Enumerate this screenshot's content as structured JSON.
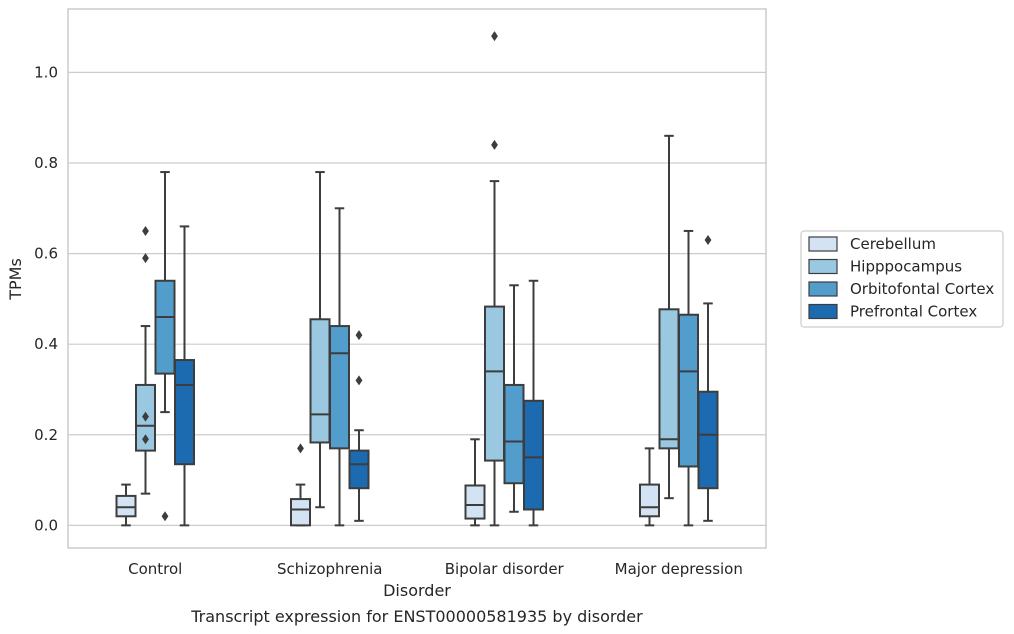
{
  "chart_data": {
    "type": "box",
    "caption": "Transcript expression for ENST00000581935 by disorder",
    "xlabel": "Disorder",
    "ylabel": "TPMs",
    "categories": [
      "Control",
      "Schizophrenia",
      "Bipolar disorder",
      "Major depression"
    ],
    "ylim": [
      -0.05,
      1.14
    ],
    "yticks": [
      "0.0",
      "0.2",
      "0.4",
      "0.6",
      "0.8",
      "1.0"
    ],
    "grid": true,
    "legend_position": "right",
    "series": [
      {
        "name": "Cerebellum",
        "color": "#d3e3f3",
        "boxes": [
          {
            "whislo": 0.0,
            "q1": 0.02,
            "med": 0.04,
            "q3": 0.065,
            "whishi": 0.09,
            "fliers": []
          },
          {
            "whislo": 0.0,
            "q1": 0.0,
            "med": 0.035,
            "q3": 0.058,
            "whishi": 0.09,
            "fliers": [
              0.17
            ]
          },
          {
            "whislo": 0.0,
            "q1": 0.015,
            "med": 0.045,
            "q3": 0.088,
            "whishi": 0.19,
            "fliers": []
          },
          {
            "whislo": 0.0,
            "q1": 0.02,
            "med": 0.04,
            "q3": 0.09,
            "whishi": 0.17,
            "fliers": []
          }
        ]
      },
      {
        "name": "Hipppocampus",
        "color": "#9ac8e0",
        "boxes": [
          {
            "whislo": 0.07,
            "q1": 0.165,
            "med": 0.22,
            "q3": 0.31,
            "whishi": 0.44,
            "fliers": [
              0.65,
              0.59,
              0.24,
              0.19
            ]
          },
          {
            "whislo": 0.04,
            "q1": 0.183,
            "med": 0.245,
            "q3": 0.455,
            "whishi": 0.78,
            "fliers": []
          },
          {
            "whislo": 0.0,
            "q1": 0.143,
            "med": 0.34,
            "q3": 0.483,
            "whishi": 0.76,
            "fliers": [
              1.08,
              0.84
            ]
          },
          {
            "whislo": 0.06,
            "q1": 0.17,
            "med": 0.19,
            "q3": 0.477,
            "whishi": 0.86,
            "fliers": []
          }
        ]
      },
      {
        "name": "Orbitofontal Cortex",
        "color": "#529dcc",
        "boxes": [
          {
            "whislo": 0.25,
            "q1": 0.335,
            "med": 0.46,
            "q3": 0.54,
            "whishi": 0.78,
            "fliers": [
              0.02
            ]
          },
          {
            "whislo": 0.0,
            "q1": 0.17,
            "med": 0.38,
            "q3": 0.44,
            "whishi": 0.7,
            "fliers": []
          },
          {
            "whislo": 0.03,
            "q1": 0.093,
            "med": 0.185,
            "q3": 0.31,
            "whishi": 0.53,
            "fliers": []
          },
          {
            "whislo": 0.0,
            "q1": 0.13,
            "med": 0.34,
            "q3": 0.465,
            "whishi": 0.65,
            "fliers": []
          }
        ]
      },
      {
        "name": "Prefrontal Cortex",
        "color": "#1c6aaf",
        "boxes": [
          {
            "whislo": 0.0,
            "q1": 0.135,
            "med": 0.31,
            "q3": 0.365,
            "whishi": 0.66,
            "fliers": []
          },
          {
            "whislo": 0.01,
            "q1": 0.082,
            "med": 0.135,
            "q3": 0.165,
            "whishi": 0.21,
            "fliers": [
              0.42,
              0.32
            ]
          },
          {
            "whislo": 0.0,
            "q1": 0.035,
            "med": 0.15,
            "q3": 0.275,
            "whishi": 0.54,
            "fliers": []
          },
          {
            "whislo": 0.01,
            "q1": 0.082,
            "med": 0.2,
            "q3": 0.295,
            "whishi": 0.49,
            "fliers": [
              0.63
            ]
          }
        ]
      }
    ]
  },
  "style": {
    "line_color": "#3d3d3d",
    "grid_color": "#cccccc",
    "frame_color": "#cccccc"
  }
}
